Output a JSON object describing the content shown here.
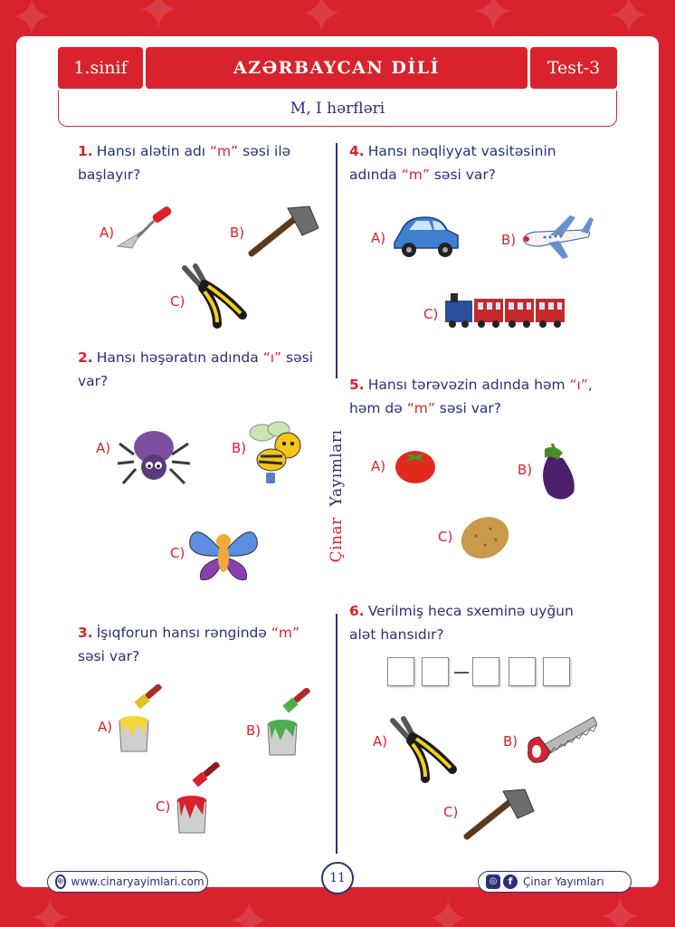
{
  "header": {
    "grade": "1.sinif",
    "subject": "AZƏRBAYCAN DİLİ",
    "test": "Test-3",
    "topic": "M, I hərfləri"
  },
  "brand_vertical": {
    "part1": "Çinar",
    "part2": "Yayımları"
  },
  "questions": [
    {
      "num": "1.",
      "pre": "Hansı alətin adı ",
      "quote": "“m”",
      "post": " səsi ilə başlayır?"
    },
    {
      "num": "2.",
      "pre": "Hansı həşəratın adında ",
      "quote": "“ı”",
      "post": " səsi var?"
    },
    {
      "num": "3.",
      "pre": "İşıqforun hansı rəngində ",
      "quote": "“m”",
      "post": " səsi var?"
    },
    {
      "num": "4.",
      "pre": "Hansı nəqliyyat vasitəsinin adında ",
      "quote": "“m”",
      "post": " səsi var?"
    },
    {
      "num": "5.",
      "pre": "Hansı tərəvəzin adında həm ",
      "quote": "“ı”",
      "mid": ", həm də ",
      "quote2": "“m”",
      "post": " səsi var?"
    },
    {
      "num": "6.",
      "pre": "Verilmiş heca sxeminə uyğun alət hansıdır?"
    }
  ],
  "options": {
    "a": "A)",
    "b": "B)",
    "c": "C)"
  },
  "icons": {
    "q1": [
      "trowel-icon",
      "axe-icon",
      "pliers-icon"
    ],
    "q2": [
      "spider-icon",
      "bee-icon",
      "butterfly-icon"
    ],
    "q3": [
      "yellow-paint-bucket-icon",
      "green-paint-bucket-icon",
      "red-paint-bucket-icon"
    ],
    "q4": [
      "car-icon",
      "airplane-icon",
      "train-icon"
    ],
    "q5": [
      "tomato-icon",
      "eggplant-icon",
      "potato-icon"
    ],
    "q6": [
      "pliers-icon",
      "saw-icon",
      "axe-icon"
    ]
  },
  "footer": {
    "website": "www.cinaryayimlari.com",
    "page": "11",
    "social": "Çinar Yayımları"
  },
  "colors": {
    "red": "#d8222e",
    "navy": "#2a2f7a"
  }
}
